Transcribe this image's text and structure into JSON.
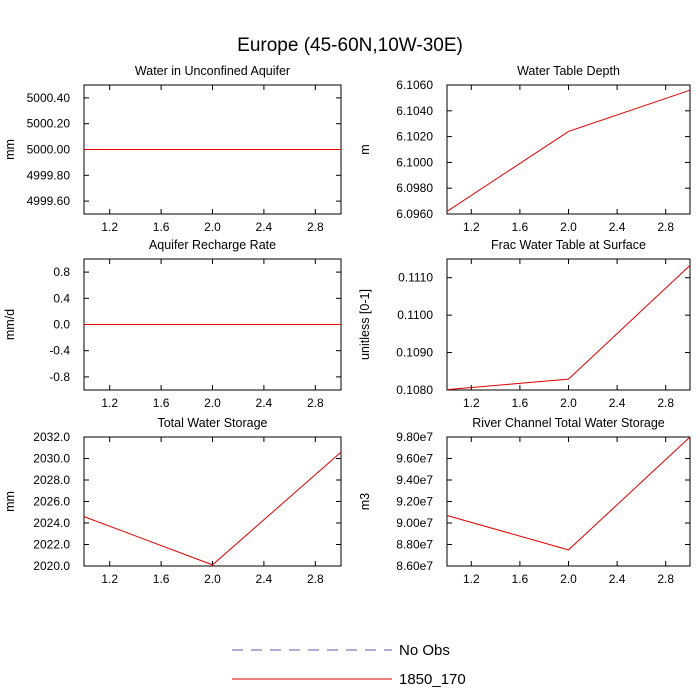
{
  "figure_title": "Europe (45-60N,10W-30E)",
  "legend": {
    "entries": [
      {
        "label": "No Obs",
        "color": "#5a5aa8",
        "style": "dashed"
      },
      {
        "label": "1850_170",
        "color": "#e00000",
        "style": "solid"
      }
    ]
  },
  "chart_data": [
    {
      "type": "line",
      "title": "Water in Unconfined Aquifer",
      "xlabel": "",
      "ylabel": "mm",
      "xlim": [
        1.0,
        3.0
      ],
      "ylim": [
        4999.5,
        5000.5
      ],
      "xticks": [
        1.2,
        1.6,
        2.0,
        2.4,
        2.8
      ],
      "xtick_labels": [
        "1.2",
        "1.6",
        "2.0",
        "2.4",
        "2.8"
      ],
      "yticks": [
        4999.6,
        4999.8,
        5000.0,
        5000.2,
        5000.4
      ],
      "ytick_labels": [
        "4999.60",
        "4999.80",
        "5000.00",
        "5000.20",
        "5000.40"
      ],
      "grid": false,
      "series": [
        {
          "name": "1850_170",
          "x": [
            1,
            2,
            3
          ],
          "y": [
            5000.0,
            5000.0,
            5000.0
          ],
          "color": "#e00000"
        }
      ]
    },
    {
      "type": "line",
      "title": "Water Table Depth",
      "xlabel": "",
      "ylabel": "m",
      "xlim": [
        1.0,
        3.0
      ],
      "ylim": [
        6.096,
        6.106
      ],
      "xticks": [
        1.2,
        1.6,
        2.0,
        2.4,
        2.8
      ],
      "xtick_labels": [
        "1.2",
        "1.6",
        "2.0",
        "2.4",
        "2.8"
      ],
      "yticks": [
        6.096,
        6.098,
        6.1,
        6.102,
        6.104,
        6.106
      ],
      "ytick_labels": [
        "6.0960",
        "6.0980",
        "6.1000",
        "6.1020",
        "6.1040",
        "6.1060"
      ],
      "grid": false,
      "series": [
        {
          "name": "1850_170",
          "x": [
            1,
            2,
            3
          ],
          "y": [
            6.0962,
            6.1024,
            6.1056
          ],
          "color": "#e00000"
        }
      ]
    },
    {
      "type": "line",
      "title": "Aquifer Recharge Rate",
      "xlabel": "",
      "ylabel": "mm/d",
      "xlim": [
        1.0,
        3.0
      ],
      "ylim": [
        -1.0,
        1.0
      ],
      "xticks": [
        1.2,
        1.6,
        2.0,
        2.4,
        2.8
      ],
      "xtick_labels": [
        "1.2",
        "1.6",
        "2.0",
        "2.4",
        "2.8"
      ],
      "yticks": [
        -0.8,
        -0.4,
        0.0,
        0.4,
        0.8
      ],
      "ytick_labels": [
        "-0.8",
        "-0.4",
        "0.0",
        "0.4",
        "0.8"
      ],
      "grid": false,
      "series": [
        {
          "name": "1850_170",
          "x": [
            1,
            2,
            3
          ],
          "y": [
            0.0,
            0.0,
            0.0
          ],
          "color": "#e00000"
        }
      ]
    },
    {
      "type": "line",
      "title": "Frac Water Table at Surface",
      "xlabel": "",
      "ylabel": "unitless [0-1]",
      "xlim": [
        1.0,
        3.0
      ],
      "ylim": [
        0.108,
        0.1115
      ],
      "xticks": [
        1.2,
        1.6,
        2.0,
        2.4,
        2.8
      ],
      "xtick_labels": [
        "1.2",
        "1.6",
        "2.0",
        "2.4",
        "2.8"
      ],
      "yticks": [
        0.108,
        0.109,
        0.11,
        0.111
      ],
      "ytick_labels": [
        "0.1080",
        "0.1090",
        "0.1100",
        "0.1110"
      ],
      "grid": false,
      "series": [
        {
          "name": "1850_170",
          "x": [
            1,
            2,
            3
          ],
          "y": [
            0.10801,
            0.10829,
            0.11133
          ],
          "color": "#e00000"
        }
      ]
    },
    {
      "type": "line",
      "title": "Total Water Storage",
      "xlabel": "",
      "ylabel": "mm",
      "xlim": [
        1.0,
        3.0
      ],
      "ylim": [
        2020.0,
        2032.0
      ],
      "xticks": [
        1.2,
        1.6,
        2.0,
        2.4,
        2.8
      ],
      "xtick_labels": [
        "1.2",
        "1.6",
        "2.0",
        "2.4",
        "2.8"
      ],
      "yticks": [
        2020,
        2022,
        2024,
        2026,
        2028,
        2030,
        2032
      ],
      "ytick_labels": [
        "2020.0",
        "2022.0",
        "2024.0",
        "2026.0",
        "2028.0",
        "2030.0",
        "2032.0"
      ],
      "grid": false,
      "series": [
        {
          "name": "1850_170",
          "x": [
            1,
            2,
            3
          ],
          "y": [
            2024.6,
            2020.1,
            2030.6
          ],
          "color": "#e00000"
        }
      ]
    },
    {
      "type": "line",
      "title": "River Channel Total Water Storage",
      "xlabel": "",
      "ylabel": "m3",
      "xlim": [
        1.0,
        3.0
      ],
      "ylim": [
        86000000,
        98000000
      ],
      "xticks": [
        1.2,
        1.6,
        2.0,
        2.4,
        2.8
      ],
      "xtick_labels": [
        "1.2",
        "1.6",
        "2.0",
        "2.4",
        "2.8"
      ],
      "yticks": [
        86000000,
        88000000,
        90000000,
        92000000,
        94000000,
        96000000,
        98000000
      ],
      "ytick_labels": [
        "8.60e7",
        "8.80e7",
        "9.00e7",
        "9.20e7",
        "9.40e7",
        "9.60e7",
        "9.80e7"
      ],
      "grid": false,
      "series": [
        {
          "name": "1850_170",
          "x": [
            1,
            2,
            3
          ],
          "y": [
            90700000,
            87500000,
            98000000
          ],
          "color": "#e00000"
        }
      ]
    }
  ]
}
